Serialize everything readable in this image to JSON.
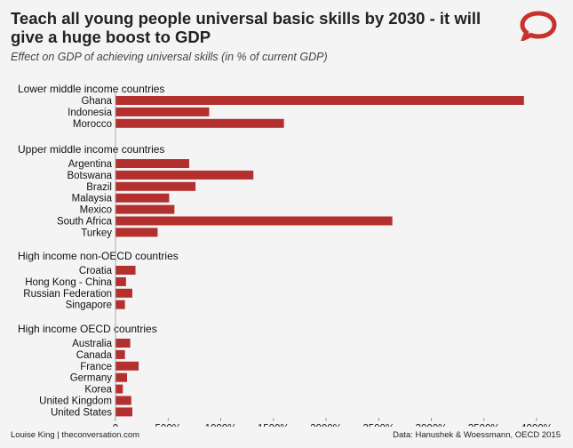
{
  "title": "Teach all young people universal basic skills by 2030 - it will give a huge boost to GDP",
  "subtitle": "Effect on GDP of achieving universal skills (in % of current GDP)",
  "footer_left": "Louise King | theconversation.com",
  "footer_right": "Data: Hanushek & Woessmann, OECD 2015",
  "colors": {
    "bar": "#b4302e",
    "logo": "#c8322c"
  },
  "chart_data": {
    "type": "bar",
    "orientation": "horizontal",
    "xlim": [
      0,
      4000
    ],
    "xticks": [
      "0",
      "500%",
      "1000%",
      "1500%",
      "2000%",
      "2500%",
      "3000%",
      "3500%",
      "4000%"
    ],
    "groups": [
      {
        "name": "Lower middle income countries",
        "categories": [
          "Ghana",
          "Indonesia",
          "Morocco"
        ],
        "values": [
          3880,
          890,
          1600
        ]
      },
      {
        "name": "Upper middle income countries",
        "categories": [
          "Argentina",
          "Botswana",
          "Brazil",
          "Malaysia",
          "Mexico",
          "South Africa",
          "Turkey"
        ],
        "values": [
          700,
          1310,
          760,
          510,
          560,
          2630,
          400
        ]
      },
      {
        "name": "High income non-OECD countries",
        "categories": [
          "Croatia",
          "Hong Kong - China",
          "Russian Federation",
          "Singapore"
        ],
        "values": [
          190,
          100,
          160,
          90
        ]
      },
      {
        "name": "High income OECD countries",
        "categories": [
          "Australia",
          "Canada",
          "France",
          "Germany",
          "Korea",
          "United Kingdom",
          "United States"
        ],
        "values": [
          140,
          90,
          220,
          110,
          70,
          150,
          160
        ]
      }
    ]
  }
}
